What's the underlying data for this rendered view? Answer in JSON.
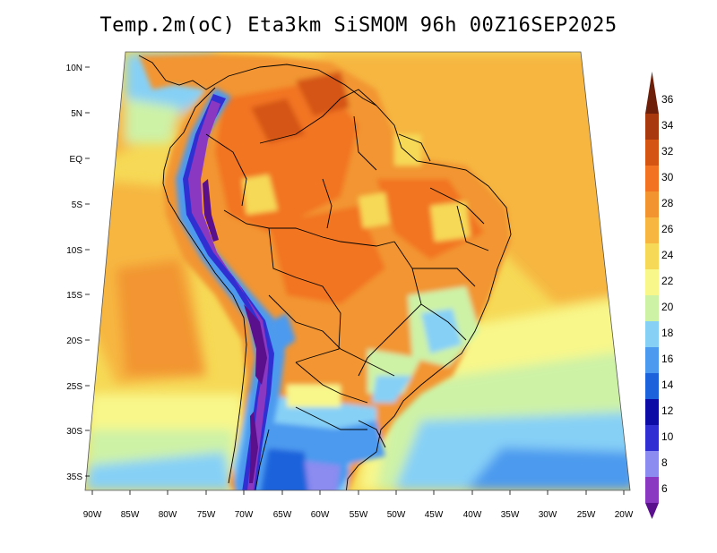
{
  "title": "Temp.2m(oC) Eta3km SiSMOM 96h 00Z16SEP2025",
  "map": {
    "variable": "2 m air temperature",
    "units": "oC",
    "lat_labels": [
      "10N",
      "5N",
      "EQ",
      "5S",
      "10S",
      "15S",
      "20S",
      "25S",
      "30S",
      "35S"
    ],
    "lon_labels": [
      "90W",
      "85W",
      "80W",
      "75W",
      "70W",
      "65W",
      "60W",
      "55W",
      "50W",
      "45W",
      "40W",
      "35W",
      "30W",
      "25W",
      "20W"
    ]
  },
  "colorbar": {
    "levels": [
      "6",
      "8",
      "10",
      "12",
      "14",
      "16",
      "18",
      "20",
      "22",
      "24",
      "26",
      "28",
      "30",
      "32",
      "34",
      "36"
    ],
    "colors": [
      "#5a0f8c",
      "#8a37c2",
      "#8b8bf0",
      "#3030d2",
      "#0d0da6",
      "#1c63db",
      "#4c9aef",
      "#86d0f6",
      "#cdf2a6",
      "#f8f78a",
      "#f6d956",
      "#f6b640",
      "#f29530",
      "#f27423",
      "#d45412",
      "#a8380e",
      "#6e1f0a"
    ]
  }
}
